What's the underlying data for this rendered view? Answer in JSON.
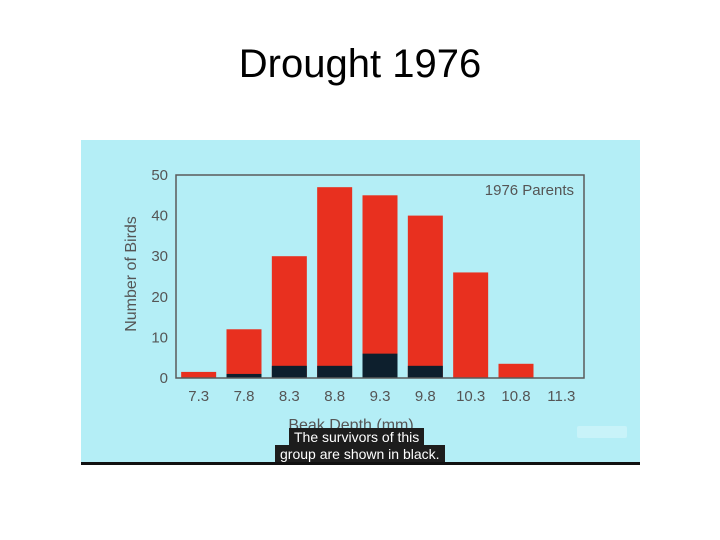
{
  "slide": {
    "title": "Drought 1976"
  },
  "caption": {
    "line1": "The survivors of this",
    "line2": "group are shown in black."
  },
  "colors": {
    "panel_bg": "#b4eef6",
    "bar_total": "#e8301f",
    "bar_survivors": "#0d1f2d",
    "axis": "#5a5a5a",
    "text": "#555555"
  },
  "chart_data": {
    "type": "bar",
    "title": "",
    "legend_text": "1976 Parents",
    "legend_placement": "top-right",
    "xlabel": "Beak Depth (mm)",
    "ylabel": "Number of Birds",
    "ylim": [
      0,
      50
    ],
    "yticks": [
      0,
      10,
      20,
      30,
      40,
      50
    ],
    "categories": [
      "7.3",
      "7.8",
      "8.3",
      "8.8",
      "9.3",
      "9.8",
      "10.3",
      "10.8",
      "11.3"
    ],
    "series": [
      {
        "name": "1976 Parents",
        "values": [
          1.5,
          12,
          30,
          47,
          45,
          40,
          26,
          3.5,
          0
        ]
      },
      {
        "name": "Survivors",
        "values": [
          0,
          1,
          3,
          3,
          6,
          3,
          0,
          0,
          0
        ]
      }
    ],
    "grid": false
  }
}
